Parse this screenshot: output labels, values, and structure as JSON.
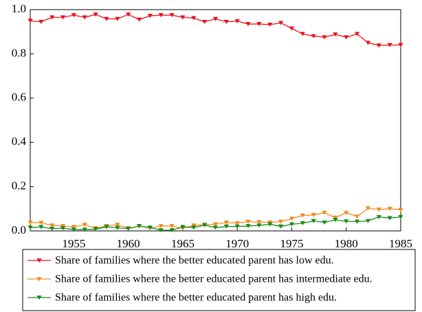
{
  "chart_data": {
    "type": "line",
    "x": [
      1951,
      1952,
      1953,
      1954,
      1955,
      1956,
      1957,
      1958,
      1959,
      1960,
      1961,
      1962,
      1963,
      1964,
      1965,
      1966,
      1967,
      1968,
      1969,
      1970,
      1971,
      1972,
      1973,
      1974,
      1975,
      1976,
      1977,
      1978,
      1979,
      1980,
      1981,
      1982,
      1983,
      1984,
      1985
    ],
    "xlim": [
      1951,
      1985
    ],
    "xticks": [
      1955,
      1960,
      1965,
      1970,
      1975,
      1980,
      1985
    ],
    "ylim": [
      0,
      1
    ],
    "yticks": [
      {
        "value": 0,
        "label": "0.0"
      },
      0.2,
      0.4,
      0.6,
      0.8,
      {
        "value": 1,
        "label": "1.0"
      }
    ],
    "series": [
      {
        "name": "Share of families where the better educated parent has low edu.",
        "color": "#e8121a",
        "values": [
          0.95,
          0.945,
          0.965,
          0.965,
          0.975,
          0.965,
          0.978,
          0.958,
          0.958,
          0.978,
          0.955,
          0.972,
          0.975,
          0.975,
          0.965,
          0.962,
          0.945,
          0.958,
          0.945,
          0.948,
          0.935,
          0.935,
          0.932,
          0.94,
          0.915,
          0.89,
          0.88,
          0.875,
          0.888,
          0.875,
          0.89,
          0.85,
          0.838,
          0.84,
          0.84
        ]
      },
      {
        "name": "Share of families where the better educated parent has intermediate edu.",
        "color": "#f5891f",
        "values": [
          0.038,
          0.037,
          0.025,
          0.022,
          0.018,
          0.028,
          0.012,
          0.022,
          0.028,
          0.012,
          0.022,
          0.012,
          0.022,
          0.022,
          0.012,
          0.025,
          0.028,
          0.03,
          0.038,
          0.035,
          0.042,
          0.04,
          0.038,
          0.042,
          0.055,
          0.07,
          0.072,
          0.082,
          0.06,
          0.082,
          0.065,
          0.102,
          0.097,
          0.1,
          0.095
        ]
      },
      {
        "name": "Share of families where the better educated parent has high edu.",
        "color": "#1a8a1a",
        "values": [
          0.015,
          0.018,
          0.01,
          0.012,
          0.006,
          0.006,
          0.008,
          0.018,
          0.014,
          0.01,
          0.022,
          0.015,
          0.003,
          0.003,
          0.018,
          0.015,
          0.026,
          0.015,
          0.02,
          0.02,
          0.022,
          0.025,
          0.03,
          0.02,
          0.03,
          0.035,
          0.045,
          0.038,
          0.05,
          0.043,
          0.042,
          0.045,
          0.063,
          0.058,
          0.063
        ]
      }
    ]
  }
}
